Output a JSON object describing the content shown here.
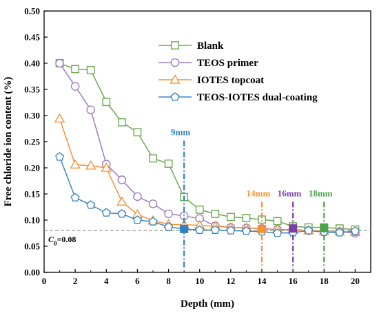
{
  "chart_data": {
    "type": "line",
    "xlabel": "Depth (mm)",
    "ylabel": "Free chloride ion content (%)",
    "xlim": [
      0,
      21
    ],
    "ylim": [
      0,
      0.5
    ],
    "x_ticks": [
      0,
      2,
      4,
      6,
      8,
      10,
      12,
      14,
      16,
      18,
      20
    ],
    "y_ticks": [
      0.0,
      0.05,
      0.1,
      0.15,
      0.2,
      0.25,
      0.3,
      0.35,
      0.4,
      0.45,
      0.5
    ],
    "grid": false,
    "legend_placement": "top-right",
    "series": [
      {
        "name": "Blank",
        "color": "#6aa84f",
        "marker": "square",
        "x": [
          1,
          2,
          3,
          4,
          5,
          6,
          7,
          8,
          9,
          10,
          11,
          12,
          13,
          14,
          15,
          16,
          17,
          18,
          19,
          20
        ],
        "y": [
          0.4,
          0.389,
          0.387,
          0.326,
          0.287,
          0.268,
          0.218,
          0.208,
          0.144,
          0.12,
          0.112,
          0.106,
          0.104,
          0.101,
          0.098,
          0.088,
          0.086,
          0.086,
          0.084,
          0.082
        ]
      },
      {
        "name": "TEOS primer",
        "color": "#9e7cc1",
        "marker": "circle",
        "x": [
          1,
          2,
          3,
          4,
          5,
          6,
          7,
          8,
          9,
          10,
          11,
          12,
          13,
          14,
          15,
          16,
          17,
          18,
          19,
          20
        ],
        "y": [
          0.4,
          0.356,
          0.311,
          0.207,
          0.177,
          0.145,
          0.131,
          0.112,
          0.108,
          0.103,
          0.089,
          0.086,
          0.085,
          0.084,
          0.082,
          0.082,
          0.08,
          0.079,
          0.078,
          0.075
        ]
      },
      {
        "name": "IOTES topcoat",
        "color": "#f39237",
        "marker": "triangle",
        "x": [
          1,
          2,
          3,
          4,
          5,
          6,
          7,
          8,
          9,
          10,
          11,
          12,
          13,
          14,
          15,
          16,
          17,
          18,
          19,
          20
        ],
        "y": [
          0.294,
          0.206,
          0.204,
          0.2,
          0.135,
          0.111,
          0.099,
          0.092,
          0.091,
          0.09,
          0.088,
          0.086,
          0.085,
          0.083,
          0.082,
          0.081,
          0.08,
          0.079,
          0.078,
          0.077
        ]
      },
      {
        "name": "TEOS-IOTES dual-coating",
        "color": "#3b86c2",
        "marker": "pentagon",
        "x": [
          1,
          2,
          3,
          4,
          5,
          6,
          7,
          8,
          9,
          10,
          11,
          12,
          13,
          14,
          15,
          16,
          17,
          18,
          19,
          20
        ],
        "y": [
          0.221,
          0.143,
          0.129,
          0.114,
          0.112,
          0.1,
          0.097,
          0.087,
          0.083,
          0.081,
          0.081,
          0.08,
          0.079,
          0.078,
          0.075,
          0.076,
          0.08,
          0.077,
          0.076,
          0.079
        ]
      }
    ],
    "reference_line": {
      "y": 0.08,
      "color": "#888888",
      "label_prefix": "C",
      "label_sub": "0",
      "label_suffix": "=0.08"
    },
    "annotations": [
      {
        "label": "9mm",
        "x": 9,
        "color": "#2f83c1",
        "y_top": 0.252,
        "marker_y": 0.083
      },
      {
        "label": "14mm",
        "x": 14,
        "color": "#f39237",
        "y_top": 0.135,
        "marker_y": 0.083
      },
      {
        "label": "16mm",
        "x": 16,
        "color": "#7b3fa5",
        "y_top": 0.135,
        "marker_y": 0.084
      },
      {
        "label": "18mm",
        "x": 18,
        "color": "#4aa24a",
        "y_top": 0.135,
        "marker_y": 0.085
      }
    ]
  }
}
